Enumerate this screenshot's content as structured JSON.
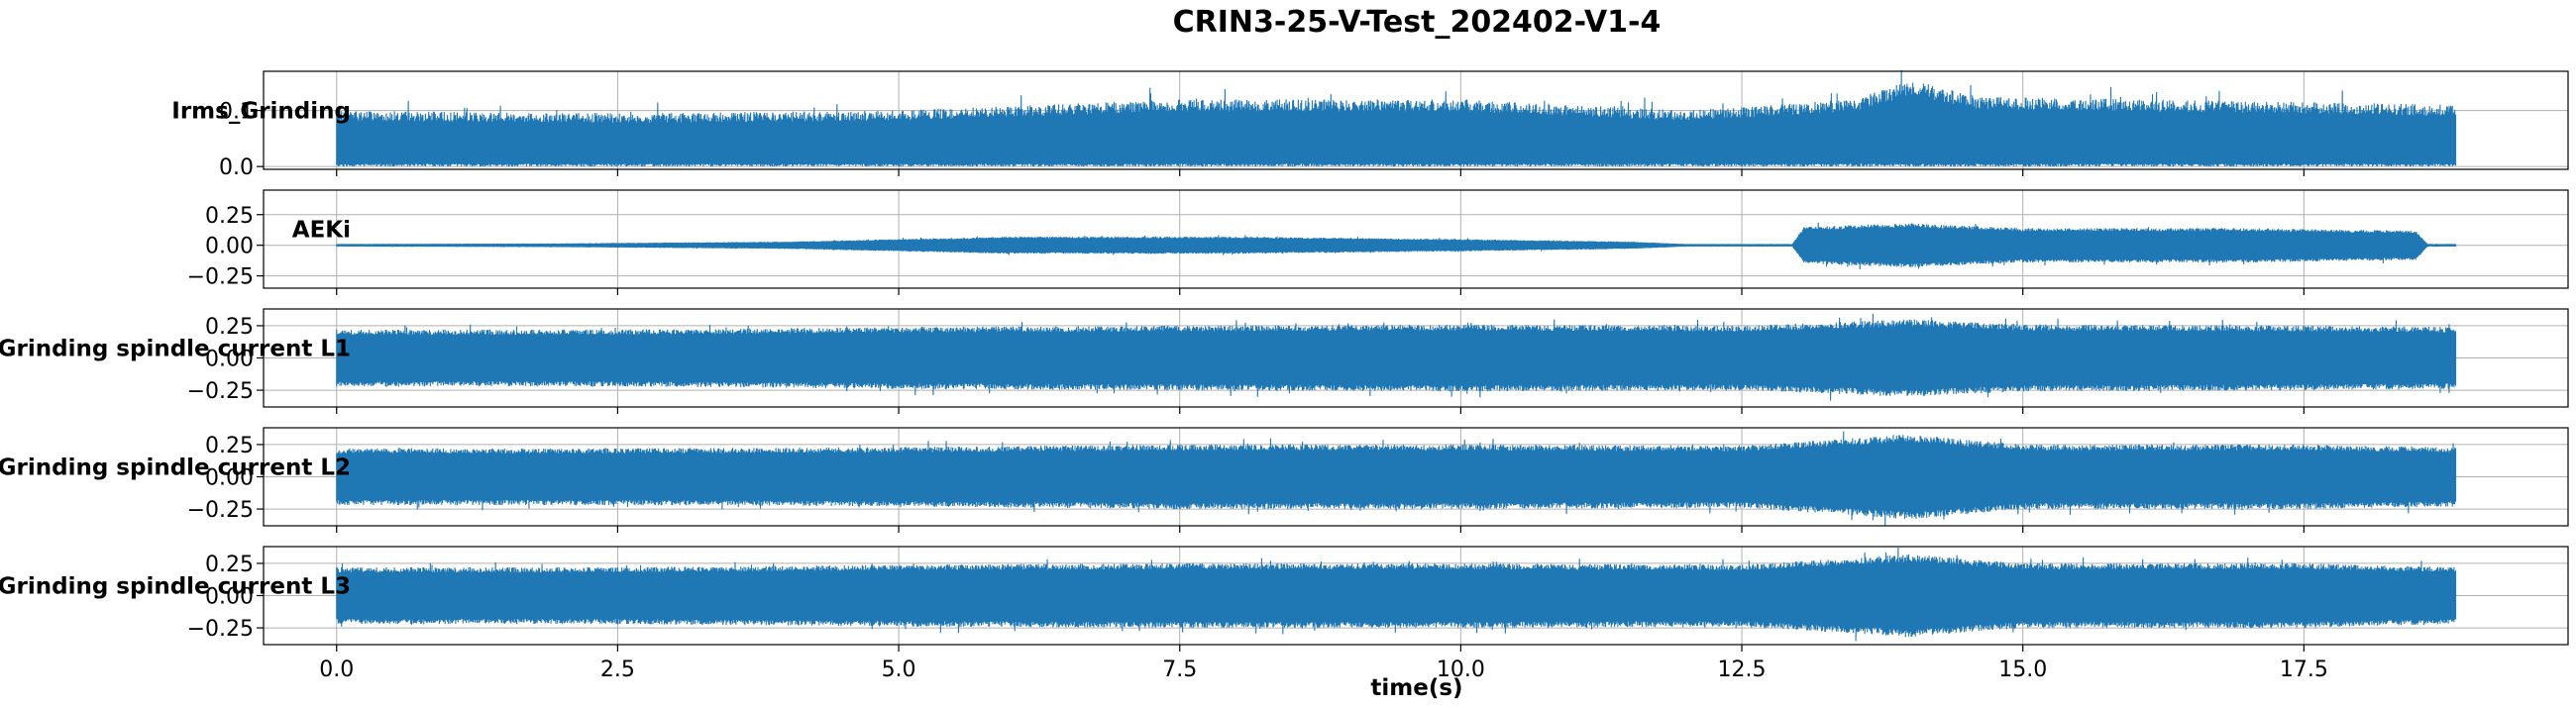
{
  "chart_data": {
    "type": "line",
    "title": "CRIN3-25-V-Test_202402-V1-4",
    "xlabel": "time(s)",
    "xlim": [
      -0.65,
      19.85
    ],
    "xticks": [
      0.0,
      2.5,
      5.0,
      7.5,
      10.0,
      12.5,
      15.0,
      17.5
    ],
    "xtick_labels": [
      "0.0",
      "2.5",
      "5.0",
      "7.5",
      "10.0",
      "12.5",
      "15.0",
      "17.5"
    ],
    "grid": true,
    "color": "#1f77b4",
    "panels": [
      {
        "ylabel": "Irms_Grinding",
        "ylim": [
          -0.005,
          0.17
        ],
        "yticks": [
          0.0,
          0.1
        ],
        "ytick_labels": [
          "0.0",
          "0.1"
        ],
        "x_range": [
          0.0,
          18.85
        ],
        "kind": "rectified",
        "envelope": [
          [
            0,
            0.1
          ],
          [
            2.5,
            0.095
          ],
          [
            5,
            0.1
          ],
          [
            7.5,
            0.12
          ],
          [
            10,
            0.12
          ],
          [
            12,
            0.1
          ],
          [
            13.5,
            0.12
          ],
          [
            14,
            0.155
          ],
          [
            14.6,
            0.125
          ],
          [
            16,
            0.12
          ],
          [
            17.5,
            0.115
          ],
          [
            18.85,
            0.11
          ]
        ],
        "floor": 0.005
      },
      {
        "ylabel": "AEKi",
        "ylim": [
          -0.35,
          0.45
        ],
        "yticks": [
          -0.25,
          0.0,
          0.25
        ],
        "ytick_labels": [
          "−0.25",
          "0.00",
          "0.25"
        ],
        "x_range": [
          0.0,
          18.85
        ],
        "kind": "bipolar",
        "envelope": [
          [
            0,
            0.01
          ],
          [
            2,
            0.015
          ],
          [
            4,
            0.03
          ],
          [
            6,
            0.07
          ],
          [
            8,
            0.07
          ],
          [
            10,
            0.05
          ],
          [
            11.5,
            0.03
          ],
          [
            12,
            0.01
          ],
          [
            12.95,
            0.01
          ],
          [
            13.05,
            0.15
          ],
          [
            14,
            0.18
          ],
          [
            15,
            0.14
          ],
          [
            17,
            0.14
          ],
          [
            18.5,
            0.12
          ],
          [
            18.6,
            0.01
          ],
          [
            18.85,
            0.01
          ]
        ]
      },
      {
        "ylabel": "Grinding spindle current L1",
        "ylim": [
          -0.38,
          0.38
        ],
        "yticks": [
          -0.25,
          0.0,
          0.25
        ],
        "ytick_labels": [
          "−0.25",
          "0.00",
          "0.25"
        ],
        "x_range": [
          0.0,
          18.85
        ],
        "kind": "bipolar",
        "envelope": [
          [
            0,
            0.22
          ],
          [
            2.5,
            0.22
          ],
          [
            5,
            0.24
          ],
          [
            7.5,
            0.25
          ],
          [
            10,
            0.26
          ],
          [
            12.5,
            0.25
          ],
          [
            14,
            0.3
          ],
          [
            15,
            0.26
          ],
          [
            17.5,
            0.25
          ],
          [
            18.85,
            0.24
          ]
        ]
      },
      {
        "ylabel": "Grinding spindle current L2",
        "ylim": [
          -0.38,
          0.38
        ],
        "yticks": [
          -0.25,
          0.0,
          0.25
        ],
        "ytick_labels": [
          "−0.25",
          "0.00",
          "0.25"
        ],
        "x_range": [
          0.0,
          18.85
        ],
        "kind": "bipolar",
        "envelope": [
          [
            0,
            0.22
          ],
          [
            2.5,
            0.22
          ],
          [
            5,
            0.23
          ],
          [
            7.5,
            0.25
          ],
          [
            10,
            0.25
          ],
          [
            12.5,
            0.24
          ],
          [
            14,
            0.33
          ],
          [
            15,
            0.25
          ],
          [
            17.5,
            0.25
          ],
          [
            18.85,
            0.23
          ]
        ]
      },
      {
        "ylabel": "Grinding spindle current L3",
        "ylim": [
          -0.38,
          0.38
        ],
        "yticks": [
          -0.25,
          0.0,
          0.25
        ],
        "ytick_labels": [
          "−0.25",
          "0.00",
          "0.25"
        ],
        "x_range": [
          0.0,
          18.85
        ],
        "kind": "bipolar",
        "envelope": [
          [
            0,
            0.22
          ],
          [
            2.5,
            0.22
          ],
          [
            5,
            0.24
          ],
          [
            7.5,
            0.25
          ],
          [
            10,
            0.25
          ],
          [
            12.5,
            0.24
          ],
          [
            14,
            0.32
          ],
          [
            15,
            0.25
          ],
          [
            17.5,
            0.25
          ],
          [
            18.85,
            0.22
          ]
        ]
      }
    ]
  }
}
